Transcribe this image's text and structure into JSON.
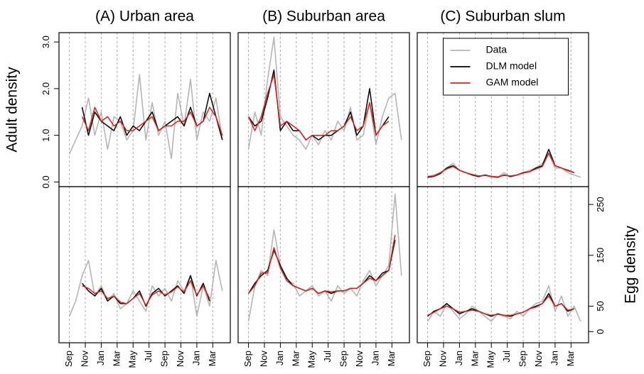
{
  "chart_data": [
    {
      "type": "line",
      "title": "(A) Urban area",
      "y_label": "Adult density",
      "x": [
        0,
        0.8,
        1.6,
        2.4,
        3.2,
        4,
        4.8,
        5.6,
        6.4,
        7.2,
        8,
        8.8,
        9.6,
        10.4,
        11.2,
        12,
        12.8,
        13.6,
        14.4,
        15.2,
        16,
        16.8,
        17.6,
        18.4,
        19.2
      ],
      "xlim": [
        -1.3,
        20.2
      ],
      "xticks": [
        0,
        2,
        4,
        6,
        8,
        10,
        12,
        14,
        16,
        18
      ],
      "ylim": [
        -0.1,
        3.2
      ],
      "yticks": [
        {
          "value": 0,
          "label": "0.0"
        },
        {
          "value": 1,
          "label": "1.0"
        },
        {
          "value": 2,
          "label": "2.0"
        },
        {
          "value": 3,
          "label": "3.0"
        }
      ],
      "series": [
        {
          "color": "#b5b5b5",
          "values": [
            0.6,
            0.9,
            1.2,
            1.8,
            1.0,
            1.5,
            0.7,
            1.4,
            1.3,
            0.9,
            1.1,
            2.3,
            0.9,
            1.7,
            1.0,
            1.3,
            0.5,
            1.9,
            1.2,
            2.2,
            0.9,
            1.5,
            1.3,
            1.8,
            0.9
          ]
        },
        {
          "color": "#000000",
          "values": [
            null,
            null,
            1.6,
            1.0,
            1.5,
            1.3,
            1.2,
            1.1,
            1.4,
            1.0,
            1.2,
            1.1,
            1.3,
            1.5,
            1.1,
            1.2,
            1.3,
            1.4,
            1.2,
            1.6,
            1.2,
            1.3,
            1.9,
            1.4,
            0.9
          ]
        },
        {
          "color": "#e0201b",
          "values": [
            null,
            null,
            1.4,
            1.1,
            1.6,
            1.3,
            1.4,
            1.2,
            1.3,
            1.1,
            1.1,
            1.2,
            1.3,
            1.4,
            1.1,
            1.2,
            1.2,
            1.3,
            1.3,
            1.5,
            1.2,
            1.3,
            1.6,
            1.4,
            1.0
          ]
        }
      ]
    },
    {
      "type": "line",
      "title": "(B) Suburban area",
      "x": [
        0,
        0.8,
        1.6,
        2.4,
        3.2,
        4,
        4.8,
        5.6,
        6.4,
        7.2,
        8,
        8.8,
        9.6,
        10.4,
        11.2,
        12,
        12.8,
        13.6,
        14.4,
        15.2,
        16,
        16.8,
        17.6,
        18.4,
        19.2
      ],
      "xlim": [
        -1.3,
        20.2
      ],
      "xticks": [
        0,
        2,
        4,
        6,
        8,
        10,
        12,
        14,
        16,
        18
      ],
      "ylim": [
        -0.1,
        3.2
      ],
      "series": [
        {
          "color": "#b5b5b5",
          "values": [
            0.7,
            1.5,
            1.0,
            2.2,
            3.1,
            1.4,
            1.2,
            1.0,
            0.9,
            0.7,
            1.0,
            0.8,
            1.1,
            0.9,
            1.3,
            1.1,
            1.6,
            0.9,
            1.0,
            1.7,
            0.8,
            1.4,
            1.8,
            1.9,
            0.9
          ]
        },
        {
          "color": "#000000",
          "values": [
            1.4,
            1.2,
            1.3,
            1.8,
            2.4,
            1.1,
            1.3,
            1.1,
            1.1,
            0.9,
            1.0,
            0.9,
            1.0,
            1.0,
            1.1,
            1.2,
            1.5,
            1.0,
            1.2,
            2.0,
            1.0,
            1.2,
            1.4,
            null,
            null
          ]
        },
        {
          "color": "#e0201b",
          "values": [
            1.4,
            1.1,
            1.4,
            1.9,
            2.3,
            1.2,
            1.3,
            1.2,
            1.1,
            0.9,
            1.0,
            1.0,
            1.0,
            1.1,
            1.1,
            1.2,
            1.4,
            1.1,
            1.2,
            1.7,
            1.0,
            1.2,
            1.3,
            null,
            null
          ]
        }
      ]
    },
    {
      "type": "line",
      "title": "(C) Suburban slum",
      "legend": "top",
      "x": [
        0,
        0.8,
        1.6,
        2.4,
        3.2,
        4,
        4.8,
        5.6,
        6.4,
        7.2,
        8,
        8.8,
        9.6,
        10.4,
        11.2,
        12,
        12.8,
        13.6,
        14.4,
        15.2,
        16,
        16.8,
        17.6,
        18.4,
        19.2
      ],
      "xlim": [
        -1.3,
        20.2
      ],
      "xticks": [
        0,
        2,
        4,
        6,
        8,
        10,
        12,
        14,
        16,
        18
      ],
      "ylim": [
        -0.1,
        3.2
      ],
      "series": [
        {
          "name": "Data",
          "color": "#b5b5b5",
          "values": [
            0.1,
            0.15,
            0.2,
            0.3,
            0.4,
            0.25,
            0.2,
            0.15,
            0.1,
            0.15,
            0.1,
            0.1,
            0.2,
            0.1,
            0.15,
            0.2,
            0.25,
            0.3,
            0.4,
            0.6,
            0.3,
            0.3,
            0.2,
            0.15,
            0.1
          ]
        },
        {
          "name": "DLM model",
          "color": "#000000",
          "values": [
            0.1,
            0.12,
            0.18,
            0.3,
            0.35,
            0.25,
            0.2,
            0.15,
            0.12,
            0.15,
            0.12,
            0.1,
            0.15,
            0.12,
            0.15,
            0.2,
            0.22,
            0.3,
            0.35,
            0.7,
            0.35,
            0.3,
            0.25,
            0.2,
            null
          ]
        },
        {
          "name": "GAM model",
          "color": "#e0201b",
          "values": [
            0.12,
            0.13,
            0.2,
            0.28,
            0.33,
            0.25,
            0.2,
            0.16,
            0.13,
            0.14,
            0.12,
            0.11,
            0.14,
            0.13,
            0.15,
            0.19,
            0.22,
            0.28,
            0.33,
            0.62,
            0.35,
            0.3,
            0.24,
            0.2,
            null
          ]
        }
      ]
    },
    {
      "type": "line",
      "x": [
        0,
        0.8,
        1.6,
        2.4,
        3.2,
        4,
        4.8,
        5.6,
        6.4,
        7.2,
        8,
        8.8,
        9.6,
        10.4,
        11.2,
        12,
        12.8,
        13.6,
        14.4,
        15.2,
        16,
        16.8,
        17.6,
        18.4,
        19.2
      ],
      "xlim": [
        -1.3,
        20.2
      ],
      "xticks": [
        {
          "value": 0,
          "label": "Sep"
        },
        {
          "value": 2,
          "label": "Nov"
        },
        {
          "value": 4,
          "label": "Jan"
        },
        {
          "value": 6,
          "label": "Mar"
        },
        {
          "value": 8,
          "label": "May"
        },
        {
          "value": 10,
          "label": "Jul"
        },
        {
          "value": 12,
          "label": "Sep"
        },
        {
          "value": 14,
          "label": "Nov"
        },
        {
          "value": 16,
          "label": "Jan"
        },
        {
          "value": 18,
          "label": "Mar"
        }
      ],
      "ylim": [
        -22,
        285
      ],
      "series": [
        {
          "color": "#b5b5b5",
          "values": [
            30,
            60,
            110,
            140,
            70,
            90,
            60,
            75,
            45,
            55,
            80,
            60,
            40,
            90,
            70,
            85,
            60,
            100,
            80,
            110,
            30,
            90,
            50,
            140,
            80
          ]
        },
        {
          "color": "#000000",
          "values": [
            null,
            null,
            95,
            80,
            70,
            85,
            60,
            70,
            55,
            55,
            65,
            80,
            50,
            75,
            85,
            70,
            80,
            90,
            75,
            110,
            70,
            95,
            60,
            null,
            null
          ]
        },
        {
          "color": "#e0201b",
          "values": [
            null,
            null,
            90,
            85,
            75,
            80,
            65,
            70,
            58,
            55,
            65,
            75,
            52,
            72,
            80,
            72,
            78,
            88,
            78,
            100,
            72,
            90,
            65,
            null,
            null
          ]
        }
      ]
    },
    {
      "type": "line",
      "x": [
        0,
        0.8,
        1.6,
        2.4,
        3.2,
        4,
        4.8,
        5.6,
        6.4,
        7.2,
        8,
        8.8,
        9.6,
        10.4,
        11.2,
        12,
        12.8,
        13.6,
        14.4,
        15.2,
        16,
        16.8,
        17.6,
        18.4,
        19.2
      ],
      "xlim": [
        -1.3,
        20.2
      ],
      "xticks": [
        {
          "value": 0,
          "label": "Sep"
        },
        {
          "value": 2,
          "label": "Nov"
        },
        {
          "value": 4,
          "label": "Jan"
        },
        {
          "value": 6,
          "label": "Mar"
        },
        {
          "value": 8,
          "label": "May"
        },
        {
          "value": 10,
          "label": "Jul"
        },
        {
          "value": 12,
          "label": "Sep"
        },
        {
          "value": 14,
          "label": "Nov"
        },
        {
          "value": 16,
          "label": "Jan"
        },
        {
          "value": 18,
          "label": "Mar"
        }
      ],
      "ylim": [
        -22,
        285
      ],
      "series": [
        {
          "color": "#b5b5b5",
          "values": [
            20,
            90,
            120,
            110,
            200,
            130,
            100,
            95,
            70,
            80,
            90,
            70,
            80,
            60,
            90,
            75,
            85,
            70,
            100,
            120,
            90,
            110,
            130,
            270,
            110
          ]
        },
        {
          "color": "#000000",
          "values": [
            75,
            95,
            110,
            120,
            160,
            130,
            105,
            90,
            85,
            80,
            85,
            75,
            80,
            75,
            80,
            80,
            85,
            85,
            95,
            110,
            100,
            115,
            120,
            180,
            null
          ]
        },
        {
          "color": "#e0201b",
          "values": [
            75,
            90,
            115,
            115,
            165,
            125,
            100,
            90,
            85,
            80,
            85,
            75,
            80,
            78,
            80,
            80,
            85,
            85,
            95,
            105,
            100,
            110,
            120,
            190,
            null
          ]
        }
      ]
    },
    {
      "type": "line",
      "y_label": "Egg density",
      "yaxis_side": "right",
      "x": [
        0,
        0.8,
        1.6,
        2.4,
        3.2,
        4,
        4.8,
        5.6,
        6.4,
        7.2,
        8,
        8.8,
        9.6,
        10.4,
        11.2,
        12,
        12.8,
        13.6,
        14.4,
        15.2,
        16,
        16.8,
        17.6,
        18.4,
        19.2
      ],
      "xlim": [
        -1.3,
        20.2
      ],
      "xticks": [
        {
          "value": 0,
          "label": "Sep"
        },
        {
          "value": 2,
          "label": "Nov"
        },
        {
          "value": 4,
          "label": "Jan"
        },
        {
          "value": 6,
          "label": "Mar"
        },
        {
          "value": 8,
          "label": "May"
        },
        {
          "value": 10,
          "label": "Jul"
        },
        {
          "value": 12,
          "label": "Sep"
        },
        {
          "value": 14,
          "label": "Nov"
        },
        {
          "value": 16,
          "label": "Jan"
        },
        {
          "value": 18,
          "label": "Mar"
        }
      ],
      "ylim": [
        -22,
        285
      ],
      "yticks": [
        0,
        50,
        150,
        250
      ],
      "series": [
        {
          "color": "#b5b5b5",
          "values": [
            20,
            40,
            30,
            55,
            40,
            25,
            35,
            50,
            40,
            30,
            20,
            35,
            30,
            25,
            40,
            30,
            45,
            55,
            60,
            90,
            40,
            70,
            30,
            50,
            20
          ]
        },
        {
          "color": "#000000",
          "values": [
            30,
            40,
            45,
            55,
            45,
            35,
            40,
            45,
            40,
            35,
            30,
            35,
            32,
            30,
            35,
            38,
            45,
            50,
            55,
            75,
            50,
            55,
            40,
            45,
            null
          ]
        },
        {
          "color": "#e0201b",
          "values": [
            32,
            38,
            45,
            50,
            45,
            38,
            40,
            42,
            40,
            35,
            32,
            34,
            32,
            32,
            35,
            38,
            45,
            48,
            55,
            70,
            50,
            55,
            42,
            45,
            null
          ]
        }
      ]
    }
  ]
}
